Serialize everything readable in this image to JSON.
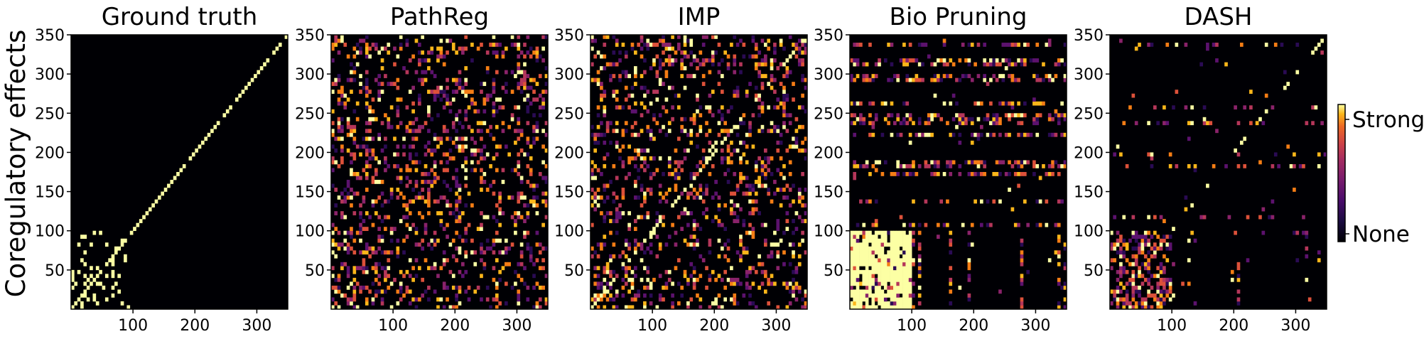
{
  "figure": {
    "ylabel": "Coregulatory effects",
    "colorbar": {
      "high_label": "Strong",
      "low_label": "None",
      "colormap": "inferno"
    }
  },
  "chart_data": [
    {
      "type": "heatmap",
      "title": "Ground truth",
      "xlim": [
        0,
        350
      ],
      "ylim": [
        0,
        350
      ],
      "xticks": [
        100,
        200,
        300
      ],
      "yticks": [
        50,
        100,
        150,
        200,
        250,
        300,
        350
      ],
      "pattern": "block",
      "block_size": 100,
      "block_density": 0.12,
      "background_density": 0.0,
      "diagonal": 0.9,
      "colors": {
        "background": "#000004",
        "strong": "#fcffa4"
      }
    },
    {
      "type": "heatmap",
      "title": "PathReg",
      "xlim": [
        0,
        350
      ],
      "ylim": [
        0,
        350
      ],
      "xticks": [
        100,
        200,
        300
      ],
      "yticks": [
        50,
        100,
        150,
        200,
        250,
        300,
        350
      ],
      "pattern": "banded_dense",
      "block_size": 100,
      "block_density": 0.5,
      "background_density": 0.4,
      "diagonal": 0.1,
      "colors": {
        "background": "#000004",
        "strong": "#fcffa4"
      }
    },
    {
      "type": "heatmap",
      "title": "IMP",
      "xlim": [
        0,
        350
      ],
      "ylim": [
        0,
        350
      ],
      "xticks": [
        100,
        200,
        300
      ],
      "yticks": [
        50,
        100,
        150,
        200,
        250,
        300,
        350
      ],
      "pattern": "scattered",
      "block_size": 100,
      "block_density": 0.35,
      "background_density": 0.25,
      "diagonal": 0.6,
      "colors": {
        "background": "#000004",
        "strong": "#fcffa4"
      }
    },
    {
      "type": "heatmap",
      "title": "Bio Pruning",
      "xlim": [
        0,
        350
      ],
      "ylim": [
        0,
        350
      ],
      "xticks": [
        100,
        200,
        300
      ],
      "yticks": [
        50,
        100,
        150,
        200,
        250,
        300,
        350
      ],
      "pattern": "saturated_block",
      "block_size": 100,
      "block_density": 0.85,
      "background_density": 0.01,
      "diagonal": 0.0,
      "colors": {
        "background": "#000004",
        "strong": "#fcffa4"
      }
    },
    {
      "type": "heatmap",
      "title": "DASH",
      "xlim": [
        0,
        350
      ],
      "ylim": [
        0,
        350
      ],
      "xticks": [
        100,
        200,
        300
      ],
      "yticks": [
        50,
        100,
        150,
        200,
        250,
        300,
        350
      ],
      "pattern": "block_sparse",
      "block_size": 100,
      "block_density": 0.45,
      "background_density": 0.01,
      "diagonal": 0.3,
      "colors": {
        "background": "#000004",
        "strong": "#fcffa4"
      }
    }
  ]
}
